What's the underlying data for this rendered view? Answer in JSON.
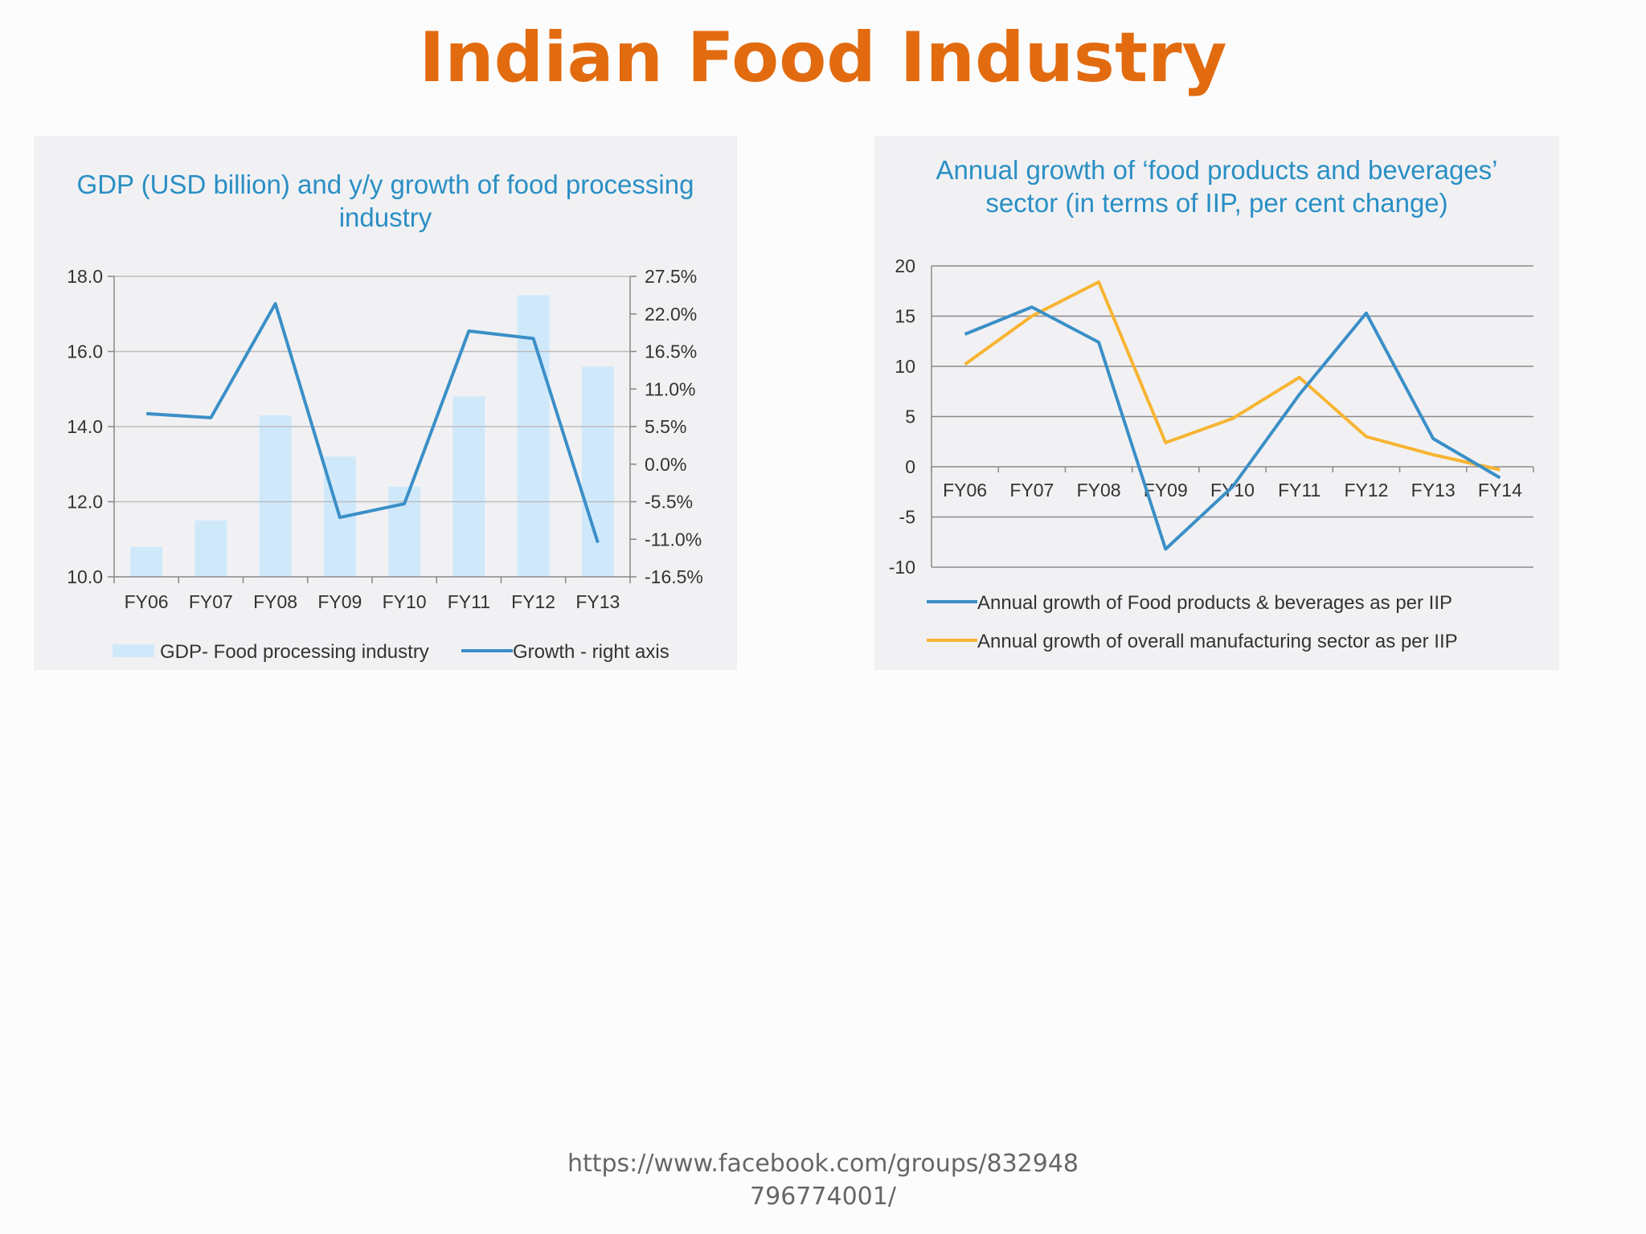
{
  "slide": {
    "title": "Indian Food Industry",
    "source_line1": "https://www.facebook.com/groups/832948",
    "source_line2": "796774001/"
  },
  "colors": {
    "title": "#e26b10",
    "chart_title": "#2a8fc4",
    "bar": "#cfe9fb",
    "growth_line": "#3b8fc7",
    "food_line": "#3b8fc7",
    "manufacturing_line": "#f8b432"
  },
  "chart_data": [
    {
      "type": "bar",
      "title": "GDP (USD billion) and y/y growth of food processing industry",
      "categories": [
        "FY06",
        "FY07",
        "FY08",
        "FY09",
        "FY10",
        "FY11",
        "FY12",
        "FY13"
      ],
      "ylim": [
        10.0,
        18.0
      ],
      "y_ticks": [
        "18.0",
        "16.0",
        "14.0",
        "12.0",
        "10.0"
      ],
      "y2lim": [
        -16.5,
        27.5
      ],
      "y2_ticks": [
        "27.5%",
        "22.0%",
        "16.5%",
        "11.0%",
        "5.5%",
        "0.0%",
        "-5.5%",
        "-11.0%",
        "-16.5%"
      ],
      "series": [
        {
          "name": "GDP- Food processing industry",
          "type": "bar",
          "values": [
            10.8,
            11.5,
            14.3,
            13.2,
            12.4,
            14.8,
            17.5,
            15.6
          ]
        },
        {
          "name": "Growth - right axis",
          "type": "line",
          "axis": "right",
          "values": [
            7.4,
            6.8,
            23.5,
            -7.8,
            -5.8,
            19.5,
            18.4,
            -11.5
          ]
        }
      ],
      "legend": "bottom"
    },
    {
      "type": "line",
      "title": "Annual growth of ‘food products and beverages’ sector (in terms of IIP, per cent change)",
      "categories": [
        "FY06",
        "FY07",
        "FY08",
        "FY09",
        "FY10",
        "FY11",
        "FY12",
        "FY13",
        "FY14"
      ],
      "ylim": [
        -10,
        20
      ],
      "y_ticks": [
        "20",
        "15",
        "10",
        "5",
        "0",
        "-5",
        "-10"
      ],
      "grid": true,
      "series": [
        {
          "name": "Annual growth of Food products & beverages as per IIP",
          "values": [
            13.2,
            15.9,
            12.4,
            -8.2,
            -2.0,
            7.2,
            15.3,
            2.8,
            -1.1
          ]
        },
        {
          "name": "Annual growth of overall manufacturing sector as per IIP",
          "values": [
            10.2,
            15.0,
            18.4,
            2.4,
            4.8,
            8.9,
            3.0,
            1.2,
            -0.3
          ]
        }
      ],
      "legend": "bottom"
    }
  ]
}
